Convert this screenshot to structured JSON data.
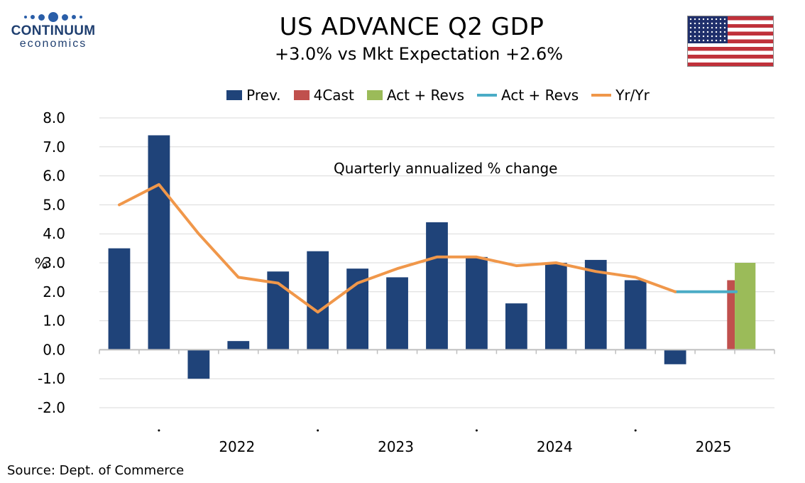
{
  "logo": {
    "name": "CONTINUUM",
    "sub": "economics"
  },
  "header": {
    "title": "US ADVANCE Q2  GDP",
    "subtitle": "+3.0% vs Mkt Expectation +2.6%"
  },
  "flag": {
    "icon": "us-flag-icon"
  },
  "colors": {
    "prev": "#1f4379",
    "forecast": "#c0504d",
    "actual": "#9bbb59",
    "act_line": "#4bacc6",
    "yoy": "#f0974a"
  },
  "legend": [
    {
      "label": "Prev.",
      "kind": "box",
      "color_key": "prev"
    },
    {
      "label": "4Cast",
      "kind": "box",
      "color_key": "forecast"
    },
    {
      "label": "Act + Revs",
      "kind": "box",
      "color_key": "actual"
    },
    {
      "label": "Act + Revs",
      "kind": "line",
      "color_key": "act_line"
    },
    {
      "label": "Yr/Yr",
      "kind": "line",
      "color_key": "yoy"
    }
  ],
  "source": "Source: Dept. of Commerce",
  "chart_data": {
    "type": "bar",
    "title": "US ADVANCE Q2  GDP",
    "subtitle": "+3.0% vs Mkt Expectation +2.6%",
    "annotation": "Quarterly annualized % change",
    "ylabel": "%",
    "ylim": [
      -2.0,
      8.0
    ],
    "yticks": [
      "-2.0",
      "-1.0",
      "0.0",
      "1.0",
      "2.0",
      "3.0",
      "4.0",
      "5.0",
      "6.0",
      "7.0",
      "8.0"
    ],
    "year_labels": [
      {
        "label": "2022",
        "after_quarter": 3
      },
      {
        "label": "2023",
        "after_quarter": 7
      },
      {
        "label": "2024",
        "after_quarter": 11
      },
      {
        "label": "2025",
        "after_quarter": 15
      }
    ],
    "quarters": [
      "2021Q2",
      "2021Q3",
      "2021Q4",
      "2022Q1",
      "2022Q2",
      "2022Q3",
      "2022Q4",
      "2023Q1",
      "2023Q2",
      "2023Q3",
      "2023Q4",
      "2024Q1",
      "2024Q2",
      "2024Q3",
      "2024Q4",
      "2025Q1",
      "2025Q2"
    ],
    "series": [
      {
        "name": "Prev.",
        "type": "bar",
        "values": [
          3.5,
          7.4,
          -1.0,
          0.3,
          2.7,
          3.4,
          2.8,
          2.5,
          4.4,
          3.2,
          1.6,
          3.0,
          3.1,
          2.4,
          -0.5,
          null,
          null
        ]
      },
      {
        "name": "4Cast",
        "type": "bar",
        "values": [
          null,
          null,
          null,
          null,
          null,
          null,
          null,
          null,
          null,
          null,
          null,
          null,
          null,
          null,
          null,
          2.4,
          null
        ]
      },
      {
        "name": "Act + Revs",
        "type": "bar",
        "values": [
          null,
          null,
          null,
          null,
          null,
          null,
          null,
          null,
          null,
          null,
          null,
          null,
          null,
          null,
          null,
          null,
          3.0
        ]
      },
      {
        "name": "Act + Revs",
        "type": "line",
        "values": [
          null,
          null,
          null,
          null,
          null,
          null,
          null,
          null,
          null,
          null,
          null,
          null,
          null,
          null,
          2.0,
          2.0,
          null
        ]
      },
      {
        "name": "Yr/Yr",
        "type": "line",
        "values": [
          5.0,
          5.7,
          4.0,
          2.5,
          2.3,
          1.3,
          2.3,
          2.8,
          3.2,
          3.2,
          2.9,
          3.0,
          2.7,
          2.5,
          2.0,
          null,
          null
        ]
      }
    ]
  }
}
